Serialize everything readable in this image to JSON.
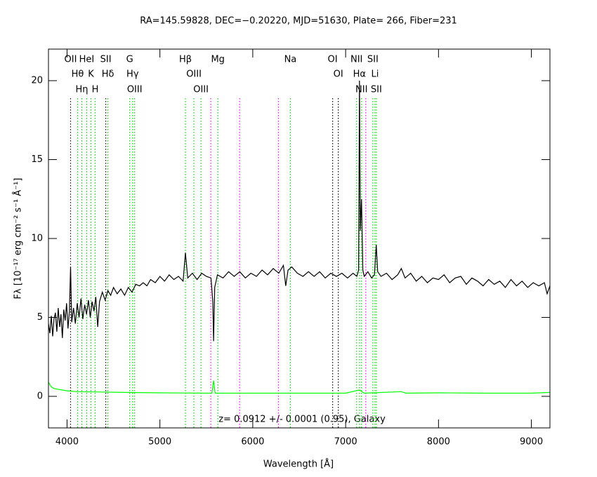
{
  "chart_data": {
    "type": "line",
    "title": "RA=145.59828, DEC=−0.20220, MJD=51630, Plate= 266, Fiber=231",
    "xlabel": "Wavelength [Å]",
    "ylabel": "Fλ [10⁻¹⁷ erg cm⁻² s⁻¹ Å⁻¹]",
    "annotation": "z= 0.0912 +/- 0.0001 (0.95), Galaxy",
    "xlim": [
      3800,
      9200
    ],
    "ylim": [
      -2,
      22
    ],
    "xticks": [
      4000,
      5000,
      6000,
      7000,
      8000,
      9000
    ],
    "yticks": [
      0,
      5,
      10,
      15,
      20
    ],
    "series": [
      {
        "color": "#000000",
        "x": [
          3800,
          3815,
          3830,
          3845,
          3860,
          3875,
          3890,
          3905,
          3920,
          3935,
          3950,
          3965,
          3980,
          3995,
          4010,
          4025,
          4038,
          4050,
          4070,
          4090,
          4110,
          4130,
          4150,
          4170,
          4190,
          4210,
          4230,
          4250,
          4270,
          4290,
          4310,
          4330,
          4350,
          4380,
          4410,
          4440,
          4470,
          4500,
          4540,
          4580,
          4620,
          4660,
          4700,
          4740,
          4780,
          4820,
          4860,
          4900,
          4950,
          5000,
          5050,
          5100,
          5150,
          5200,
          5250,
          5275,
          5300,
          5350,
          5400,
          5450,
          5500,
          5550,
          5570,
          5578,
          5590,
          5620,
          5680,
          5740,
          5800,
          5860,
          5920,
          5980,
          6040,
          6100,
          6160,
          6220,
          6280,
          6330,
          6355,
          6380,
          6420,
          6480,
          6540,
          6600,
          6660,
          6720,
          6780,
          6840,
          6900,
          6960,
          7020,
          7080,
          7120,
          7140,
          7149,
          7158,
          7171,
          7185,
          7200,
          7240,
          7280,
          7310,
          7330,
          7345,
          7380,
          7440,
          7500,
          7560,
          7600,
          7640,
          7700,
          7760,
          7820,
          7880,
          7940,
          8000,
          8060,
          8120,
          8180,
          8240,
          8300,
          8360,
          8420,
          8480,
          8540,
          8600,
          8660,
          8720,
          8780,
          8840,
          8900,
          8960,
          9020,
          9080,
          9140,
          9170,
          9200
        ],
        "values": [
          4.6,
          4.0,
          5.1,
          3.8,
          4.9,
          5.3,
          4.1,
          5.6,
          4.4,
          5.2,
          3.7,
          5.5,
          4.8,
          5.9,
          4.3,
          5.4,
          8.2,
          4.7,
          5.6,
          4.6,
          5.9,
          5.0,
          6.2,
          4.9,
          5.8,
          5.2,
          6.1,
          5.0,
          6.0,
          5.4,
          6.3,
          4.4,
          6.0,
          6.6,
          6.1,
          6.7,
          6.4,
          6.9,
          6.5,
          6.8,
          6.4,
          6.9,
          6.6,
          7.1,
          7.0,
          7.2,
          7.0,
          7.4,
          7.2,
          7.6,
          7.3,
          7.7,
          7.4,
          7.6,
          7.3,
          9.1,
          7.5,
          7.8,
          7.4,
          7.8,
          7.6,
          7.5,
          6.0,
          3.5,
          6.9,
          7.7,
          7.5,
          7.9,
          7.6,
          7.9,
          7.5,
          7.8,
          7.6,
          8.0,
          7.7,
          8.1,
          7.8,
          8.3,
          7.0,
          8.0,
          8.2,
          7.8,
          7.6,
          7.9,
          7.6,
          7.9,
          7.5,
          7.8,
          7.6,
          7.8,
          7.5,
          7.8,
          7.6,
          8.0,
          20.0,
          10.5,
          12.5,
          8.0,
          7.6,
          7.9,
          7.5,
          7.7,
          9.6,
          7.9,
          7.6,
          7.8,
          7.4,
          7.7,
          8.1,
          7.5,
          7.8,
          7.3,
          7.6,
          7.2,
          7.5,
          7.4,
          7.7,
          7.2,
          7.5,
          7.6,
          7.1,
          7.5,
          7.3,
          7.0,
          7.4,
          7.1,
          7.3,
          6.9,
          7.4,
          7.0,
          7.3,
          6.9,
          7.2,
          7.0,
          7.2,
          6.5,
          7.0
        ]
      },
      {
        "color": "#00ff00",
        "x": [
          3800,
          3830,
          3860,
          3900,
          3950,
          4000,
          4100,
          4300,
          4600,
          5000,
          5500,
          5560,
          5578,
          5595,
          6000,
          6500,
          7000,
          7149,
          7200,
          7600,
          7650,
          8000,
          8500,
          9000,
          9200
        ],
        "values": [
          0.9,
          0.6,
          0.5,
          0.45,
          0.4,
          0.35,
          0.3,
          0.28,
          0.25,
          0.22,
          0.2,
          0.2,
          1.0,
          0.2,
          0.2,
          0.2,
          0.2,
          0.4,
          0.2,
          0.3,
          0.2,
          0.22,
          0.2,
          0.2,
          0.25
        ]
      }
    ],
    "lines": [
      {
        "x": 4038,
        "color": "#000000",
        "name": "OII"
      },
      {
        "x": 4114,
        "color": "#00dd00",
        "name": "Hθ"
      },
      {
        "x": 4159,
        "color": "#00dd00",
        "name": "Hη"
      },
      {
        "x": 4212,
        "color": "#00dd00",
        "name": "HeI"
      },
      {
        "x": 4258,
        "color": "#00dd00",
        "name": "K"
      },
      {
        "x": 4303,
        "color": "#00dd00",
        "name": "H"
      },
      {
        "x": 4417,
        "color": "#000000",
        "name": "SII"
      },
      {
        "x": 4440,
        "color": "#00dd00",
        "name": "Hδ"
      },
      {
        "x": 4675,
        "color": "#00dd00",
        "name": "G"
      },
      {
        "x": 4706,
        "color": "#00dd00",
        "name": "Hγ"
      },
      {
        "x": 4728,
        "color": "#00dd00",
        "name": "OIII"
      },
      {
        "x": 5275,
        "color": "#00dd00",
        "name": "Hβ"
      },
      {
        "x": 5366,
        "color": "#00dd00",
        "name": "OIII"
      },
      {
        "x": 5442,
        "color": "#00dd00",
        "name": "OIII"
      },
      {
        "x": 5548,
        "color": "#ff00ff"
      },
      {
        "x": 5624,
        "color": "#00dd00",
        "name": "Mg"
      },
      {
        "x": 5859,
        "color": "#ff00ff"
      },
      {
        "x": 6276,
        "color": "#ff00ff"
      },
      {
        "x": 6405,
        "color": "#00dd00",
        "name": "Na"
      },
      {
        "x": 6860,
        "color": "#000000",
        "name": "OI"
      },
      {
        "x": 6921,
        "color": "#000000",
        "name": "OI"
      },
      {
        "x": 7118,
        "color": "#00dd00",
        "name": "NII"
      },
      {
        "x": 7149,
        "color": "#00dd00",
        "name": "Hα"
      },
      {
        "x": 7171,
        "color": "#00dd00",
        "name": "NII"
      },
      {
        "x": 7217,
        "color": "#ff00ff"
      },
      {
        "x": 7293,
        "color": "#00dd00",
        "name": "SII"
      },
      {
        "x": 7316,
        "color": "#00dd00",
        "name": "Li"
      },
      {
        "x": 7331,
        "color": "#00dd00",
        "name": "SII"
      }
    ]
  }
}
